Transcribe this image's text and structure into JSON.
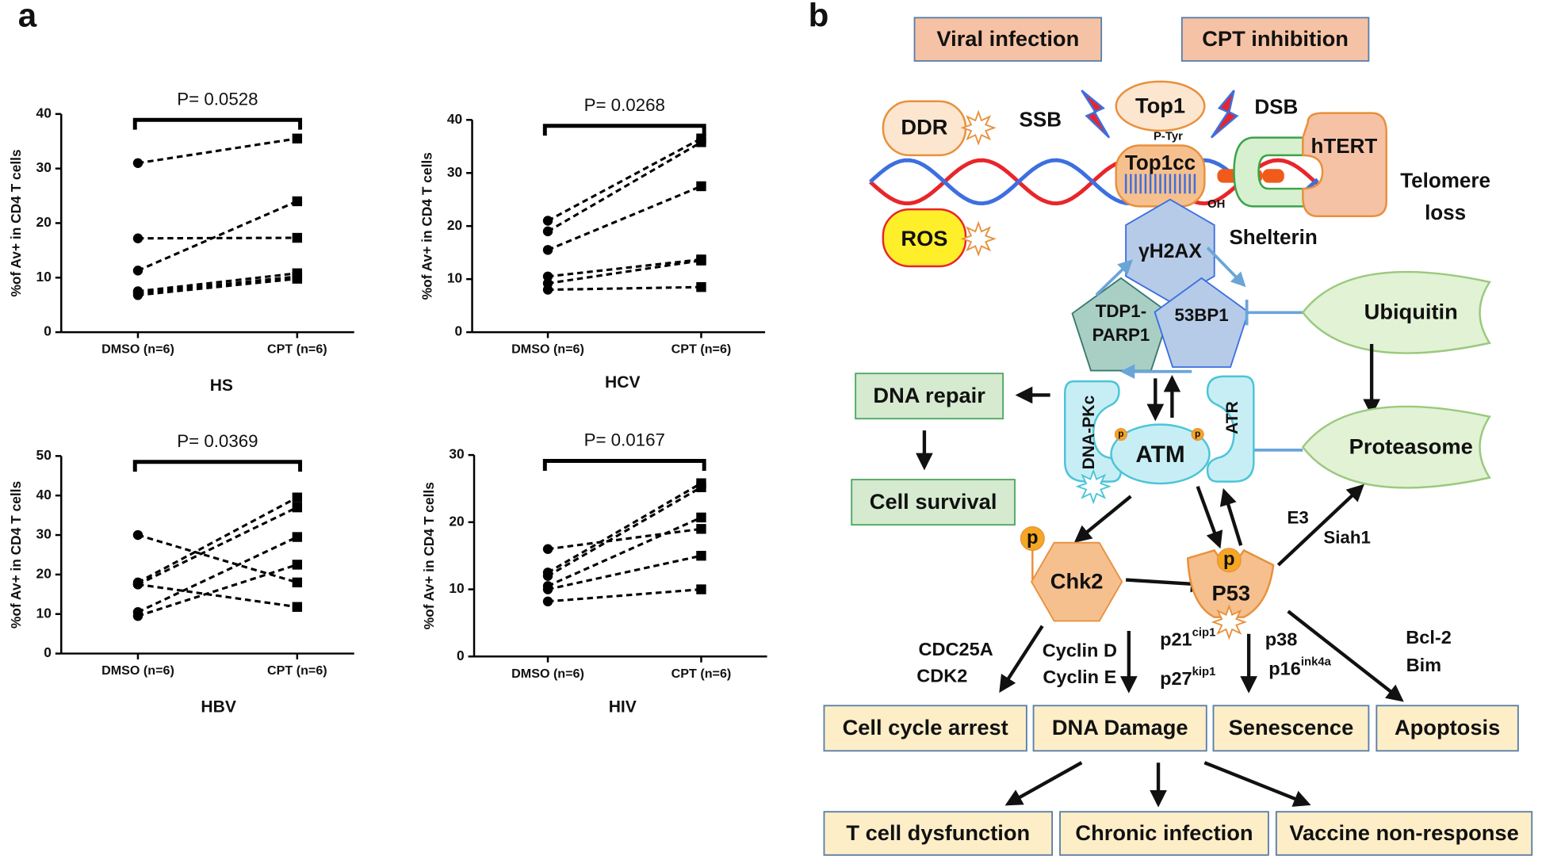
{
  "chart_data": [
    {
      "type": "line",
      "title": "HS",
      "annotation": "P= 0.0528",
      "ylabel": "%of Av+ in CD4 T cells",
      "categories": [
        "DMSO (n=6)",
        "CPT (n=6)"
      ],
      "ylim": [
        0,
        40
      ],
      "yticks": [
        0,
        10,
        20,
        30,
        40
      ],
      "color": "#000000",
      "linestyle": "dashed",
      "series": [
        {
          "values": [
            31,
            35.5
          ]
        },
        {
          "values": [
            17.2,
            17.3
          ]
        },
        {
          "values": [
            11.3,
            24
          ]
        },
        {
          "values": [
            7.5,
            10.8
          ]
        },
        {
          "values": [
            7.2,
            10.2
          ]
        },
        {
          "values": [
            6.8,
            9.8
          ]
        }
      ]
    },
    {
      "type": "line",
      "title": "HCV",
      "annotation": "P= 0.0268",
      "ylabel": "%of Av+ in CD4 T cells",
      "categories": [
        "DMSO (n=6)",
        "CPT (n=6)"
      ],
      "ylim": [
        0,
        40
      ],
      "yticks": [
        0,
        10,
        20,
        30,
        40
      ],
      "color": "#000000",
      "linestyle": "dashed",
      "series": [
        {
          "values": [
            21,
            36.5
          ]
        },
        {
          "values": [
            19,
            35.8
          ]
        },
        {
          "values": [
            15.5,
            27.5
          ]
        },
        {
          "values": [
            10.5,
            13.7
          ]
        },
        {
          "values": [
            9.2,
            13.5
          ]
        },
        {
          "values": [
            8,
            8.5
          ]
        }
      ]
    },
    {
      "type": "line",
      "title": "HBV",
      "annotation": "P= 0.0369",
      "ylabel": "%of Av+ in CD4 T cells",
      "categories": [
        "DMSO (n=6)",
        "CPT (n=6)"
      ],
      "ylim": [
        0,
        50
      ],
      "yticks": [
        0,
        10,
        20,
        30,
        40,
        50
      ],
      "color": "#000000",
      "linestyle": "dashed",
      "series": [
        {
          "values": [
            30,
            18
          ]
        },
        {
          "values": [
            18,
            39.5
          ]
        },
        {
          "values": [
            17.5,
            37
          ]
        },
        {
          "values": [
            17.5,
            11.8
          ]
        },
        {
          "values": [
            10.5,
            29.5
          ]
        },
        {
          "values": [
            9.5,
            22.5
          ]
        }
      ]
    },
    {
      "type": "line",
      "title": "HIV",
      "annotation": "P= 0.0167",
      "ylabel": "%of Av+ in CD4 T cells",
      "categories": [
        "DMSO (n=6)",
        "CPT (n=6)"
      ],
      "ylim": [
        0,
        30
      ],
      "yticks": [
        0,
        10,
        20,
        30
      ],
      "color": "#000000",
      "linestyle": "dashed",
      "series": [
        {
          "values": [
            16,
            19
          ]
        },
        {
          "values": [
            12.5,
            25.8
          ]
        },
        {
          "values": [
            12,
            25.2
          ]
        },
        {
          "values": [
            10.5,
            20.7
          ]
        },
        {
          "values": [
            10,
            15
          ]
        },
        {
          "values": [
            8.2,
            10
          ]
        }
      ]
    }
  ],
  "panel_labels": [
    "a",
    "b"
  ],
  "diagram": {
    "viral_infection": "Viral infection",
    "cpt_inhibition": "CPT inhibition",
    "ddr": "DDR",
    "ssb": "SSB",
    "top1": "Top1",
    "dsb": "DSB",
    "p_tyr": "P-Tyr",
    "top1cc": "Top1cc",
    "htert": "hTERT",
    "telomere_loss": [
      "Telomere",
      "loss"
    ],
    "oh": "OH",
    "ros": "ROS",
    "gh2ax": "γH2AX",
    "shelterin": "Shelterin",
    "tdp1_parp1": [
      "TDP1-",
      "PARP1"
    ],
    "bp53": "53BP1",
    "ubiquitin": "Ubiquitin",
    "dna_repair": "DNA repair",
    "dna_pkc": "DNA-PKc",
    "atr": "ATR",
    "atm": "ATM",
    "phospho": [
      "p",
      "p",
      "p",
      "p"
    ],
    "proteasome": "Proteasome",
    "cell_survival": "Cell survival",
    "e3": "E3",
    "siah1": "Siah1",
    "chk2": "Chk2",
    "p53": "P53",
    "cdc25a": "CDC25A",
    "cdk2": "CDK2",
    "cyclin_d": "Cyclin D",
    "cyclin_e": "Cyclin E",
    "p21": {
      "base": "p21",
      "sup": "cip1"
    },
    "p27": {
      "base": "p27",
      "sup": "kip1"
    },
    "p38": "p38",
    "p16": {
      "base": "p16",
      "sup": "ink4a"
    },
    "bcl2": "Bcl-2",
    "bim": "Bim",
    "cell_cycle_arrest": "Cell cycle arrest",
    "dna_damage": "DNA Damage",
    "senescence": "Senescence",
    "apoptosis": "Apoptosis",
    "t_cell_dysfunction": "T cell dysfunction",
    "chronic_infection": "Chronic infection",
    "vaccine_non_response": "Vaccine non-response"
  }
}
